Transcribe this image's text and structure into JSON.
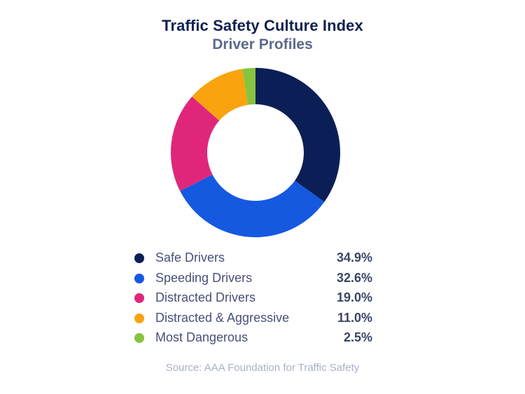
{
  "chart_data": {
    "type": "pie",
    "variant": "donut",
    "title": "Traffic Safety Culture Index",
    "subtitle": "Driver Profiles",
    "categories": [
      "Safe Drivers",
      "Speeding Drivers",
      "Distracted Drivers",
      "Distracted & Aggressive",
      "Most Dangerous"
    ],
    "values": [
      34.9,
      32.6,
      19.0,
      11.0,
      2.5
    ],
    "value_labels": [
      "34.9%",
      "32.6%",
      "19.0%",
      "11.0%",
      "2.5%"
    ],
    "colors": [
      "#0b1f56",
      "#1559e0",
      "#e0267a",
      "#f9a30f",
      "#86c440"
    ],
    "start": "12 o'clock",
    "direction": "clockwise",
    "legend_position": "bottom",
    "source": "Source: AAA Foundation for Traffic Safety"
  }
}
